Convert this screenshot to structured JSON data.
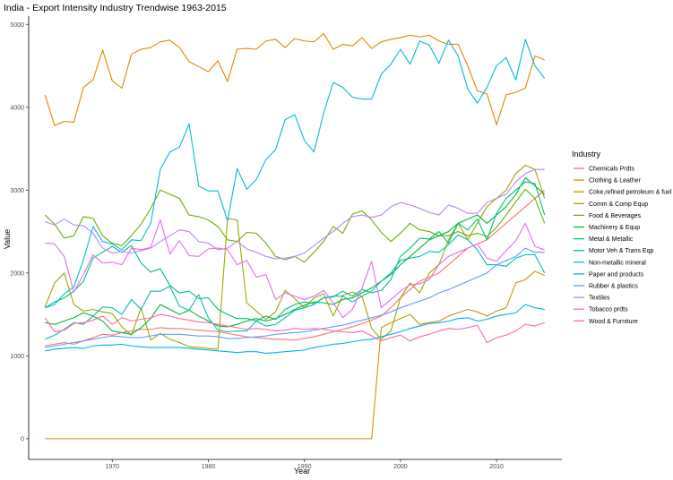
{
  "chart_data": {
    "type": "line",
    "title": "India -  Export Intensity  Industry Trendwise 1963-2015",
    "xlabel": "Year",
    "ylabel": "Value",
    "xlim": [
      1961.3,
      2016.8
    ],
    "ylim": [
      -250,
      5100
    ],
    "x_ticks": [
      1970,
      1980,
      1990,
      2000,
      2010
    ],
    "y_ticks": [
      0,
      1000,
      2000,
      3000,
      4000,
      5000
    ],
    "grid": false,
    "legend_title": "Industry",
    "legend_position": "right",
    "x": [
      1963,
      1964,
      1965,
      1966,
      1967,
      1968,
      1969,
      1970,
      1971,
      1972,
      1973,
      1974,
      1975,
      1976,
      1977,
      1978,
      1979,
      1980,
      1981,
      1982,
      1983,
      1984,
      1985,
      1986,
      1987,
      1988,
      1989,
      1990,
      1991,
      1992,
      1993,
      1994,
      1995,
      1996,
      1997,
      1998,
      1999,
      2000,
      2001,
      2002,
      2003,
      2004,
      2005,
      2006,
      2007,
      2008,
      2009,
      2010,
      2011,
      2012,
      2013,
      2014,
      2015
    ],
    "series": [
      {
        "name": "Chemicals Prdts",
        "color": "#F8766D",
        "values": [
          1120,
          1140,
          1160,
          1140,
          1180,
          1220,
          1260,
          1250,
          1280,
          1300,
          1320,
          1320,
          1340,
          1330,
          1330,
          1320,
          1310,
          1300,
          1290,
          1270,
          1250,
          1230,
          1220,
          1210,
          1200,
          1200,
          1190,
          1210,
          1230,
          1260,
          1290,
          1320,
          1350,
          1390,
          1430,
          1480,
          1580,
          1700,
          1800,
          1900,
          1950,
          2000,
          2100,
          2200,
          2300,
          2350,
          2400,
          2500,
          2600,
          2700,
          2800,
          2900,
          3000
        ]
      },
      {
        "name": "Clothing & Leather",
        "color": "#E58700",
        "values": [
          4150,
          3780,
          3830,
          3820,
          4240,
          4330,
          4690,
          4320,
          4230,
          4640,
          4700,
          4720,
          4790,
          4810,
          4720,
          4550,
          4490,
          4430,
          4560,
          4310,
          4700,
          4710,
          4700,
          4800,
          4820,
          4720,
          4830,
          4800,
          4790,
          4890,
          4700,
          4760,
          4740,
          4840,
          4710,
          4790,
          4820,
          4840,
          4870,
          4850,
          4870,
          4800,
          4760,
          4760,
          4500,
          4200,
          4160,
          3790,
          4150,
          4180,
          4230,
          4620,
          4570
        ]
      },
      {
        "name": "Coke,refined petroleum & fuel",
        "color": "#C99800",
        "values": [
          0,
          0,
          0,
          0,
          0,
          0,
          0,
          0,
          0,
          0,
          0,
          0,
          0,
          0,
          0,
          0,
          0,
          0,
          0,
          0,
          0,
          0,
          0,
          0,
          0,
          0,
          0,
          0,
          0,
          0,
          0,
          0,
          0,
          0,
          0,
          1340,
          1400,
          1450,
          1500,
          1380,
          1400,
          1420,
          1480,
          1520,
          1560,
          1530,
          1480,
          1540,
          1580,
          1880,
          1920,
          2020,
          1970
        ]
      },
      {
        "name": "Comm & Comp Equp",
        "color": "#A3A500",
        "values": [
          1590,
          1880,
          2000,
          1620,
          1540,
          1560,
          1530,
          1510,
          1350,
          1250,
          1580,
          1190,
          1270,
          1200,
          1160,
          1110,
          1100,
          1090,
          1080,
          2660,
          2640,
          1640,
          1540,
          1440,
          1530,
          1790,
          1690,
          1580,
          1700,
          1750,
          1480,
          1730,
          1770,
          1720,
          1330,
          1200,
          1300,
          1700,
          1880,
          1760,
          2000,
          2100,
          2400,
          2600,
          2400,
          2600,
          2800,
          2900,
          3000,
          3200,
          3300,
          3250,
          2900
        ]
      },
      {
        "name": "Food & Beverages",
        "color": "#6BB100",
        "values": [
          2700,
          2590,
          2420,
          2450,
          2680,
          2660,
          2450,
          2360,
          2330,
          2450,
          2590,
          2780,
          3000,
          2950,
          2900,
          2700,
          2680,
          2640,
          2560,
          2400,
          2380,
          2490,
          2480,
          2360,
          2200,
          2160,
          2200,
          2130,
          2250,
          2380,
          2560,
          2480,
          2710,
          2750,
          2640,
          2490,
          2380,
          2480,
          2600,
          2520,
          2500,
          2450,
          2450,
          2500,
          2450,
          2480,
          2440,
          2550,
          2700,
          2860,
          3010,
          2900,
          2600
        ]
      },
      {
        "name": "Machinery &  Equp",
        "color": "#00BA38",
        "values": [
          1400,
          1380,
          1420,
          1460,
          1520,
          1480,
          1420,
          1300,
          1280,
          1260,
          1340,
          1450,
          1620,
          1560,
          1500,
          1550,
          1480,
          1420,
          1360,
          1350,
          1380,
          1420,
          1450,
          1420,
          1450,
          1500,
          1560,
          1610,
          1650,
          1640,
          1620,
          1680,
          1700,
          1760,
          1820,
          1900,
          1980,
          2100,
          2200,
          2300,
          2400,
          2450,
          2500,
          2600,
          2650,
          2700,
          2600,
          2700,
          2800,
          2950,
          3150,
          3050,
          2950
        ]
      },
      {
        "name": "Metal & Metallic",
        "color": "#00BF7D",
        "values": [
          1580,
          1650,
          1700,
          1780,
          1900,
          2180,
          2250,
          2320,
          2250,
          2330,
          2120,
          2010,
          2050,
          1850,
          1760,
          1780,
          1690,
          1700,
          1560,
          1500,
          1450,
          1450,
          1420,
          1480,
          1440,
          1560,
          1620,
          1650,
          1630,
          1700,
          1710,
          1780,
          1720,
          1800,
          1760,
          1790,
          1920,
          2200,
          2300,
          2420,
          2410,
          2500,
          2360,
          2600,
          2520,
          2650,
          2400,
          2720,
          2900,
          3000,
          3100,
          3080,
          2700
        ]
      },
      {
        "name": "Motor Veh & Trans Eqp",
        "color": "#00C0AF",
        "values": [
          1200,
          1250,
          1320,
          1400,
          1380,
          1480,
          1590,
          1580,
          1500,
          1680,
          1560,
          1780,
          1780,
          1840,
          1600,
          1550,
          1740,
          1460,
          1310,
          1290,
          1300,
          1300,
          1420,
          1360,
          1380,
          1460,
          1550,
          1580,
          1620,
          1700,
          1720,
          1720,
          1650,
          1720,
          1780,
          1900,
          2000,
          2150,
          2180,
          2200,
          2260,
          2250,
          2340,
          2460,
          2400,
          2280,
          2100,
          2100,
          2080,
          2180,
          2220,
          2220,
          2000
        ]
      },
      {
        "name": "Non-metallic mineral",
        "color": "#00BCD8",
        "values": [
          1580,
          1620,
          1750,
          1830,
          2160,
          2560,
          2380,
          2350,
          2280,
          2400,
          2390,
          2600,
          3250,
          3460,
          3520,
          3800,
          3050,
          2990,
          2990,
          2630,
          3260,
          3010,
          3130,
          3370,
          3490,
          3850,
          3910,
          3600,
          3460,
          3930,
          4300,
          4240,
          4120,
          4100,
          4100,
          4400,
          4520,
          4700,
          4520,
          4800,
          4750,
          4530,
          4810,
          4620,
          4220,
          4050,
          4240,
          4500,
          4600,
          4330,
          4820,
          4500,
          4350
        ]
      },
      {
        "name": "Paper and  products",
        "color": "#00B0F6",
        "values": [
          1060,
          1080,
          1090,
          1100,
          1090,
          1120,
          1130,
          1130,
          1140,
          1120,
          1110,
          1100,
          1100,
          1100,
          1100,
          1090,
          1080,
          1070,
          1060,
          1050,
          1040,
          1050,
          1050,
          1030,
          1040,
          1050,
          1060,
          1070,
          1100,
          1120,
          1140,
          1150,
          1170,
          1190,
          1200,
          1230,
          1260,
          1290,
          1330,
          1360,
          1390,
          1400,
          1420,
          1450,
          1460,
          1420,
          1440,
          1480,
          1500,
          1520,
          1620,
          1580,
          1560
        ]
      },
      {
        "name": "Rubber & plastics",
        "color": "#619CFF",
        "values": [
          1100,
          1120,
          1140,
          1160,
          1180,
          1200,
          1220,
          1240,
          1230,
          1220,
          1220,
          1240,
          1260,
          1260,
          1260,
          1250,
          1240,
          1240,
          1230,
          1210,
          1210,
          1220,
          1230,
          1240,
          1260,
          1270,
          1280,
          1290,
          1310,
          1330,
          1350,
          1370,
          1400,
          1430,
          1460,
          1490,
          1530,
          1580,
          1620,
          1660,
          1700,
          1760,
          1800,
          1850,
          1900,
          1950,
          2000,
          2100,
          2150,
          2200,
          2300,
          2250,
          2250
        ]
      },
      {
        "name": "Textiles",
        "color": "#B983FF",
        "values": [
          2620,
          2580,
          2650,
          2580,
          2570,
          2480,
          2300,
          2240,
          2260,
          2240,
          2270,
          2300,
          2380,
          2450,
          2520,
          2500,
          2380,
          2360,
          2280,
          2300,
          2380,
          2290,
          2250,
          2200,
          2170,
          2180,
          2200,
          2240,
          2330,
          2420,
          2500,
          2600,
          2680,
          2700,
          2670,
          2700,
          2800,
          2850,
          2820,
          2780,
          2730,
          2700,
          2820,
          2780,
          2720,
          2720,
          2850,
          2900,
          2950,
          3100,
          3200,
          3250,
          3250
        ]
      },
      {
        "name": "Tobacco prdts",
        "color": "#E76BF3",
        "values": [
          2360,
          2350,
          2200,
          1770,
          1980,
          2220,
          2120,
          2130,
          2100,
          2300,
          2280,
          2310,
          2640,
          2230,
          2390,
          2210,
          2200,
          2290,
          2300,
          2280,
          2100,
          2150,
          1950,
          1980,
          1680,
          1760,
          1720,
          1680,
          1720,
          1790,
          1640,
          1460,
          1560,
          1820,
          2140,
          1580,
          1680,
          1780,
          1860,
          1870,
          1920,
          2100,
          2200,
          2250,
          2300,
          2350,
          2180,
          2140,
          2270,
          2390,
          2600,
          2320,
          2280
        ]
      },
      {
        "name": "Wood & Furniture",
        "color": "#FF67A4",
        "values": [
          1460,
          1290,
          1310,
          1390,
          1400,
          1430,
          1480,
          1380,
          1460,
          1420,
          1440,
          1460,
          1500,
          1480,
          1450,
          1430,
          1410,
          1400,
          1380,
          1360,
          1340,
          1320,
          1330,
          1320,
          1300,
          1310,
          1330,
          1320,
          1330,
          1320,
          1300,
          1290,
          1280,
          1300,
          1240,
          1180,
          1220,
          1250,
          1180,
          1230,
          1260,
          1300,
          1330,
          1320,
          1340,
          1370,
          1160,
          1220,
          1250,
          1300,
          1380,
          1360,
          1400
        ]
      }
    ]
  }
}
